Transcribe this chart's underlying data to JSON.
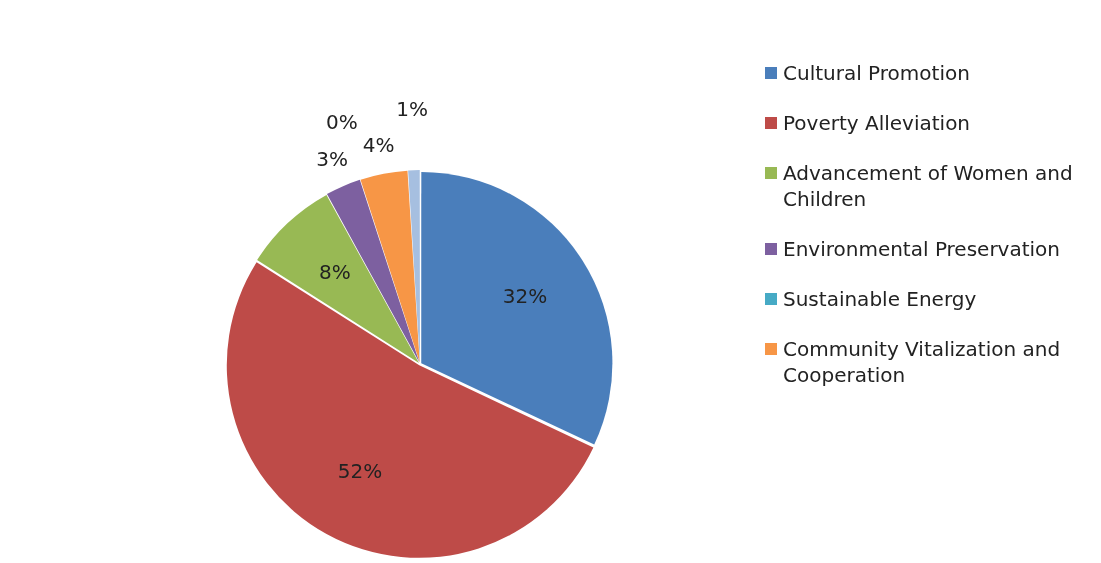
{
  "chart_data": {
    "type": "pie",
    "categories": [
      "Cultural Promotion",
      "Poverty Alleviation",
      "Advancement of Women and Children",
      "Environmental Preservation",
      "Sustainable Energy",
      "Community Vitalization and Cooperation",
      null
    ],
    "values": [
      32,
      52,
      8,
      3,
      0,
      4,
      1
    ],
    "colors": [
      "#4a7ebb",
      "#be4b48",
      "#98b954",
      "#7d60a0",
      "#46aac5",
      "#f79646",
      "#a6bfe0"
    ],
    "value_labels": [
      "32%",
      "52%",
      "8%",
      "3%",
      "0%",
      "4%",
      "1%"
    ],
    "legend": "right"
  }
}
